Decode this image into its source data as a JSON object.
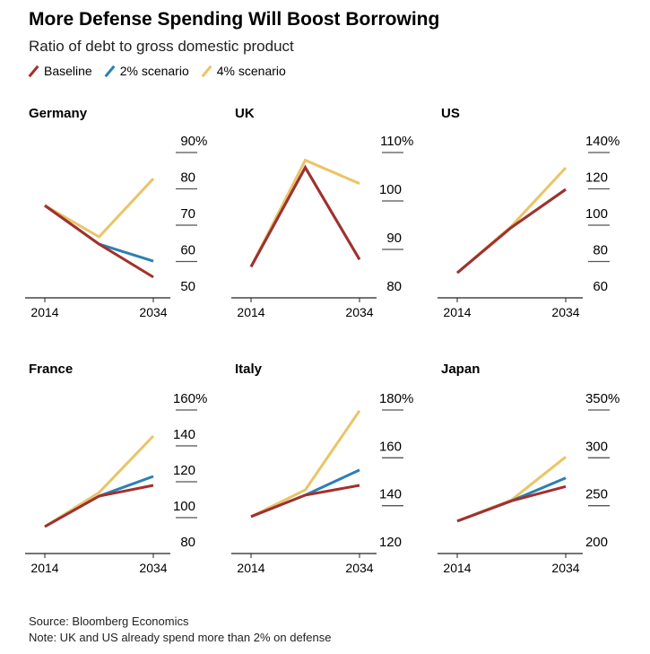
{
  "title": "More Defense Spending Will Boost Borrowing",
  "subtitle": "Ratio of debt to gross domestic product",
  "legend": [
    {
      "label": "Baseline",
      "color": "#a3302b"
    },
    {
      "label": "2% scenario",
      "color": "#2b80b3"
    },
    {
      "label": "4% scenario",
      "color": "#eac466"
    }
  ],
  "source": "Source: Bloomberg Economics",
  "note": "Note: UK and US already spend more than 2% on defense",
  "chart_data": [
    {
      "type": "line",
      "title": "Germany",
      "x": [
        2014,
        2024,
        2034
      ],
      "xticks": [
        "2014",
        "2034"
      ],
      "ylim": [
        50,
        90
      ],
      "yticks": [
        50,
        60,
        70,
        80,
        90
      ],
      "series": [
        {
          "name": "Baseline",
          "values": [
            75.4,
            64.8,
            55.7
          ]
        },
        {
          "name": "2% scenario",
          "values": [
            75.4,
            64.8,
            60.1
          ]
        },
        {
          "name": "4% scenario",
          "values": [
            75.4,
            66.8,
            82.8
          ]
        }
      ]
    },
    {
      "type": "line",
      "title": "UK",
      "x": [
        2014,
        2024,
        2034
      ],
      "xticks": [
        "2014",
        "2034"
      ],
      "ylim": [
        80,
        110
      ],
      "yticks": [
        80,
        90,
        100,
        110
      ],
      "series": [
        {
          "name": "Baseline",
          "values": [
            86.4,
            106.9,
            87.9
          ]
        },
        {
          "name": "2% scenario",
          "values": [
            86.4,
            106.9,
            87.9
          ]
        },
        {
          "name": "4% scenario",
          "values": [
            86.4,
            108.4,
            103.6
          ]
        }
      ]
    },
    {
      "type": "line",
      "title": "US",
      "x": [
        2014,
        2024,
        2034
      ],
      "xticks": [
        "2014",
        "2034"
      ],
      "ylim": [
        60,
        140
      ],
      "yticks": [
        60,
        80,
        100,
        120,
        140
      ],
      "series": [
        {
          "name": "Baseline",
          "values": [
            73.8,
            98.8,
            119.7
          ]
        },
        {
          "name": "2% scenario",
          "values": [
            73.8,
            98.8,
            119.7
          ]
        },
        {
          "name": "4% scenario",
          "values": [
            73.8,
            99.5,
            131.6
          ]
        }
      ]
    },
    {
      "type": "line",
      "title": "France",
      "x": [
        2014,
        2024,
        2034
      ],
      "xticks": [
        "2014",
        "2034"
      ],
      "ylim": [
        80,
        160
      ],
      "yticks": [
        80,
        100,
        120,
        140,
        160
      ],
      "series": [
        {
          "name": "Baseline",
          "values": [
            95,
            112,
            118
          ]
        },
        {
          "name": "2% scenario",
          "values": [
            95,
            112,
            123
          ]
        },
        {
          "name": "4% scenario",
          "values": [
            95,
            114,
            145.5
          ]
        }
      ]
    },
    {
      "type": "line",
      "title": "Italy",
      "x": [
        2014,
        2024,
        2034
      ],
      "xticks": [
        "2014",
        "2034"
      ],
      "ylim": [
        120,
        180
      ],
      "yticks": [
        120,
        140,
        160,
        180
      ],
      "series": [
        {
          "name": "Baseline",
          "values": [
            135.4,
            144.4,
            148.5
          ]
        },
        {
          "name": "2% scenario",
          "values": [
            135.4,
            144.4,
            154.9
          ]
        },
        {
          "name": "4% scenario",
          "values": [
            135.4,
            146.6,
            179.7
          ]
        }
      ]
    },
    {
      "type": "line",
      "title": "Japan",
      "x": [
        2014,
        2024,
        2034
      ],
      "xticks": [
        "2014",
        "2034"
      ],
      "ylim": [
        200,
        350
      ],
      "yticks": [
        200,
        250,
        300,
        350
      ],
      "series": [
        {
          "name": "Baseline",
          "values": [
            233.8,
            255,
            270
          ]
        },
        {
          "name": "2% scenario",
          "values": [
            233.8,
            255,
            279
          ]
        },
        {
          "name": "4% scenario",
          "values": [
            233.8,
            256,
            301
          ]
        }
      ]
    }
  ]
}
